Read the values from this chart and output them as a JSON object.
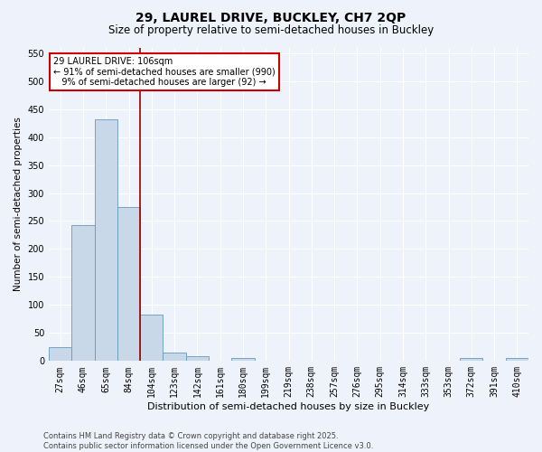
{
  "title_line1": "29, LAUREL DRIVE, BUCKLEY, CH7 2QP",
  "title_line2": "Size of property relative to semi-detached houses in Buckley",
  "xlabel": "Distribution of semi-detached houses by size in Buckley",
  "ylabel": "Number of semi-detached properties",
  "categories": [
    "27sqm",
    "46sqm",
    "65sqm",
    "84sqm",
    "104sqm",
    "123sqm",
    "142sqm",
    "161sqm",
    "180sqm",
    "199sqm",
    "219sqm",
    "238sqm",
    "257sqm",
    "276sqm",
    "295sqm",
    "314sqm",
    "333sqm",
    "353sqm",
    "372sqm",
    "391sqm",
    "410sqm"
  ],
  "values": [
    25,
    243,
    432,
    275,
    83,
    15,
    8,
    0,
    5,
    0,
    0,
    0,
    0,
    0,
    0,
    0,
    0,
    0,
    5,
    0,
    5
  ],
  "bar_color": "#c8d8e8",
  "bar_edge_color": "#6699bb",
  "vline_index": 4,
  "vline_color": "#990000",
  "annotation_text": "29 LAUREL DRIVE: 106sqm\n← 91% of semi-detached houses are smaller (990)\n   9% of semi-detached houses are larger (92) →",
  "annotation_box_color": "white",
  "annotation_box_edge_color": "#cc0000",
  "ylim": [
    0,
    560
  ],
  "yticks": [
    0,
    50,
    100,
    150,
    200,
    250,
    300,
    350,
    400,
    450,
    500,
    550
  ],
  "footer_line1": "Contains HM Land Registry data © Crown copyright and database right 2025.",
  "footer_line2": "Contains public sector information licensed under the Open Government Licence v3.0.",
  "background_color": "#eef2fa",
  "plot_bg_color": "#eef2fa",
  "grid_color": "#ffffff",
  "title1_fontsize": 10,
  "title2_fontsize": 8.5,
  "xlabel_fontsize": 8,
  "ylabel_fontsize": 7.5,
  "tick_fontsize": 7,
  "footer_fontsize": 6
}
